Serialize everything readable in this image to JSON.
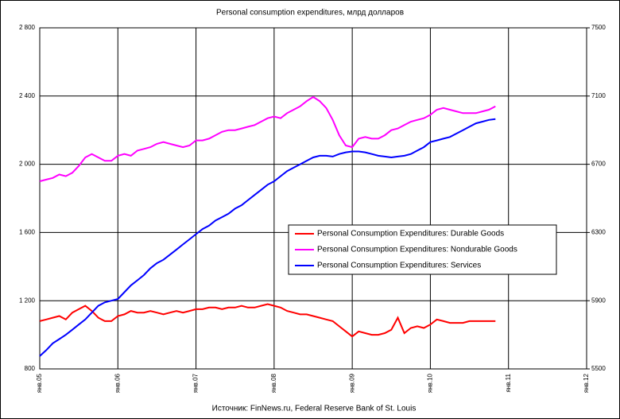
{
  "chart_data": {
    "type": "line",
    "title": "Personal consumption expenditures, млрд долларов",
    "source": "Источник: FinNews.ru, Federal Reserve Bank of St. Louis",
    "x": [
      "2005-01",
      "2005-02",
      "2005-03",
      "2005-04",
      "2005-05",
      "2005-06",
      "2005-07",
      "2005-08",
      "2005-09",
      "2005-10",
      "2005-11",
      "2005-12",
      "2006-01",
      "2006-02",
      "2006-03",
      "2006-04",
      "2006-05",
      "2006-06",
      "2006-07",
      "2006-08",
      "2006-09",
      "2006-10",
      "2006-11",
      "2006-12",
      "2007-01",
      "2007-02",
      "2007-03",
      "2007-04",
      "2007-05",
      "2007-06",
      "2007-07",
      "2007-08",
      "2007-09",
      "2007-10",
      "2007-11",
      "2007-12",
      "2008-01",
      "2008-02",
      "2008-03",
      "2008-04",
      "2008-05",
      "2008-06",
      "2008-07",
      "2008-08",
      "2008-09",
      "2008-10",
      "2008-11",
      "2008-12",
      "2009-01",
      "2009-02",
      "2009-03",
      "2009-04",
      "2009-05",
      "2009-06",
      "2009-07",
      "2009-08",
      "2009-09",
      "2009-10",
      "2009-11",
      "2009-12",
      "2010-01",
      "2010-02",
      "2010-03",
      "2010-04",
      "2010-05",
      "2010-06",
      "2010-07",
      "2010-08",
      "2010-09",
      "2010-10",
      "2010-11"
    ],
    "xlim": [
      "2005-01",
      "2012-01"
    ],
    "xticks": [
      {
        "value": "2005-01",
        "label": "янв.05"
      },
      {
        "value": "2006-01",
        "label": "янв.06"
      },
      {
        "value": "2007-01",
        "label": "янв.07"
      },
      {
        "value": "2008-01",
        "label": "янв.08"
      },
      {
        "value": "2009-01",
        "label": "янв.09"
      },
      {
        "value": "2010-01",
        "label": "янв.10"
      },
      {
        "value": "2011-01",
        "label": "янв.11"
      },
      {
        "value": "2012-01",
        "label": "янв.12"
      }
    ],
    "ylim": [
      800,
      2800
    ],
    "yticks": [
      {
        "value": 800,
        "label": "800"
      },
      {
        "value": 1200,
        "label": "1 200"
      },
      {
        "value": 1600,
        "label": "1 600"
      },
      {
        "value": 2000,
        "label": "2 000"
      },
      {
        "value": 2400,
        "label": "2 400"
      },
      {
        "value": 2800,
        "label": "2 800"
      }
    ],
    "y2lim": [
      5500,
      7500
    ],
    "y2ticks": [
      5500,
      5900,
      6300,
      6700,
      7100,
      7500
    ],
    "grid": true,
    "series": [
      {
        "name": "Personal Consumption Expenditures: Durable Goods",
        "color": "#ff0000",
        "values": [
          1080,
          1090,
          1100,
          1110,
          1090,
          1130,
          1150,
          1170,
          1140,
          1100,
          1080,
          1080,
          1110,
          1120,
          1140,
          1130,
          1130,
          1140,
          1130,
          1120,
          1130,
          1140,
          1130,
          1140,
          1150,
          1150,
          1160,
          1160,
          1150,
          1160,
          1160,
          1170,
          1160,
          1160,
          1170,
          1180,
          1170,
          1160,
          1140,
          1130,
          1120,
          1120,
          1110,
          1100,
          1090,
          1080,
          1050,
          1020,
          990,
          1020,
          1010,
          1000,
          1000,
          1010,
          1030,
          1100,
          1010,
          1040,
          1050,
          1040,
          1060,
          1090,
          1080,
          1070,
          1070,
          1070,
          1080,
          1080,
          1080,
          1080,
          1080
        ]
      },
      {
        "name": "Personal Consumption Expenditures: Nondurable Goods",
        "color": "#ff00ff",
        "values": [
          1900,
          1910,
          1920,
          1940,
          1930,
          1950,
          1990,
          2040,
          2060,
          2040,
          2020,
          2020,
          2050,
          2060,
          2050,
          2080,
          2090,
          2100,
          2120,
          2130,
          2120,
          2110,
          2100,
          2110,
          2140,
          2140,
          2150,
          2170,
          2190,
          2200,
          2200,
          2210,
          2220,
          2230,
          2250,
          2270,
          2280,
          2270,
          2300,
          2320,
          2340,
          2370,
          2395,
          2370,
          2330,
          2260,
          2170,
          2110,
          2100,
          2150,
          2160,
          2150,
          2150,
          2170,
          2200,
          2210,
          2230,
          2250,
          2260,
          2270,
          2290,
          2320,
          2330,
          2320,
          2310,
          2300,
          2300,
          2300,
          2310,
          2320,
          2340
        ]
      },
      {
        "name": "Personal Consumption Expenditures: Services",
        "color": "#0000ff",
        "axis": "y2",
        "values": [
          5575,
          5610,
          5650,
          5675,
          5700,
          5730,
          5760,
          5790,
          5830,
          5870,
          5890,
          5900,
          5910,
          5950,
          5990,
          6020,
          6050,
          6090,
          6120,
          6140,
          6170,
          6200,
          6230,
          6260,
          6290,
          6320,
          6340,
          6370,
          6390,
          6410,
          6440,
          6460,
          6490,
          6520,
          6550,
          6580,
          6600,
          6630,
          6660,
          6680,
          6700,
          6720,
          6740,
          6750,
          6750,
          6745,
          6760,
          6770,
          6775,
          6775,
          6770,
          6760,
          6750,
          6745,
          6740,
          6745,
          6750,
          6760,
          6780,
          6800,
          6830,
          6840,
          6850,
          6860,
          6880,
          6900,
          6920,
          6940,
          6950,
          6960,
          6965
        ]
      }
    ]
  }
}
